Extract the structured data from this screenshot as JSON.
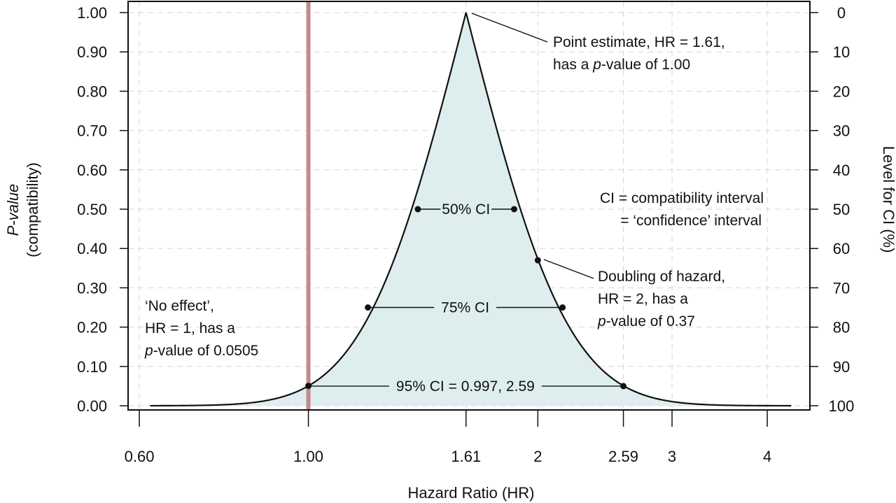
{
  "chart_data": {
    "type": "area",
    "xlabel": "Hazard Ratio (HR)",
    "ylabel_line1": "P-value",
    "ylabel_line2": "(compatibility)",
    "ylabel_right": "Level for CI (%)",
    "x_scale": "log",
    "xlim": [
      0.58,
      4.55
    ],
    "ylim": [
      0,
      1
    ],
    "x_ticks": [
      {
        "value": 0.6,
        "label": "0.60"
      },
      {
        "value": 1.0,
        "label": "1.00"
      },
      {
        "value": 1.61,
        "label": "1.61"
      },
      {
        "value": 2.0,
        "label": "2"
      },
      {
        "value": 2.59,
        "label": "2.59"
      },
      {
        "value": 3.0,
        "label": "3"
      },
      {
        "value": 4.0,
        "label": "4"
      }
    ],
    "y_ticks": [
      {
        "value": 0.0,
        "label": "0.00"
      },
      {
        "value": 0.1,
        "label": "0.10"
      },
      {
        "value": 0.2,
        "label": "0.20"
      },
      {
        "value": 0.3,
        "label": "0.30"
      },
      {
        "value": 0.4,
        "label": "0.40"
      },
      {
        "value": 0.5,
        "label": "0.50"
      },
      {
        "value": 0.6,
        "label": "0.60"
      },
      {
        "value": 0.7,
        "label": "0.70"
      },
      {
        "value": 0.8,
        "label": "0.80"
      },
      {
        "value": 0.9,
        "label": "0.90"
      },
      {
        "value": 1.0,
        "label": "1.00"
      }
    ],
    "y_ticks_right": [
      {
        "value": 0.0,
        "label": "100"
      },
      {
        "value": 0.1,
        "label": "90"
      },
      {
        "value": 0.2,
        "label": "80"
      },
      {
        "value": 0.3,
        "label": "70"
      },
      {
        "value": 0.4,
        "label": "60"
      },
      {
        "value": 0.5,
        "label": "50"
      },
      {
        "value": 0.6,
        "label": "40"
      },
      {
        "value": 0.7,
        "label": "30"
      },
      {
        "value": 0.8,
        "label": "20"
      },
      {
        "value": 0.9,
        "label": "10"
      },
      {
        "value": 1.0,
        "label": "0"
      }
    ],
    "grid": true,
    "curve": {
      "point_estimate": 1.61,
      "lower_95": 0.997,
      "upper_95": 2.59,
      "x_range": [
        0.62,
        4.3
      ],
      "fill_color": "#deeeee",
      "line_color": "#111111"
    },
    "reference_line": {
      "x": 1.0,
      "color": "#c48a8a"
    },
    "points": [
      {
        "x": 1.0,
        "y": 0.0505
      },
      {
        "x": 2.59,
        "y": 0.05
      },
      {
        "x": 1.197,
        "y": 0.25
      },
      {
        "x": 2.155,
        "y": 0.25
      },
      {
        "x": 1.392,
        "y": 0.5
      },
      {
        "x": 1.862,
        "y": 0.5
      },
      {
        "x": 2.0,
        "y": 0.37
      }
    ],
    "intervals": [
      {
        "label": "50% CI",
        "lo": 1.392,
        "hi": 1.862,
        "y": 0.5
      },
      {
        "label": "75% CI",
        "lo": 1.197,
        "hi": 2.155,
        "y": 0.25
      },
      {
        "label": "95% CI = 0.997, 2.59",
        "lo": 0.997,
        "hi": 2.59,
        "y": 0.05
      }
    ],
    "annotations": {
      "point_estimate": {
        "line1": "Point estimate, HR = 1.61,",
        "line2_pre": "has a ",
        "line2_ital": "p",
        "line2_post": "-value of 1.00"
      },
      "ci_definition": {
        "line1": "CI = compatibility interval",
        "line2": "= ‘confidence’ interval"
      },
      "doubling": {
        "line1": "Doubling of hazard,",
        "line2": "HR = 2, has a",
        "line3_ital": "p",
        "line3_post": "-value of 0.37"
      },
      "no_effect": {
        "line1": "‘No effect’,",
        "line2": "HR = 1, has a",
        "line3_ital": "p",
        "line3_post": "-value of 0.0505"
      }
    }
  }
}
